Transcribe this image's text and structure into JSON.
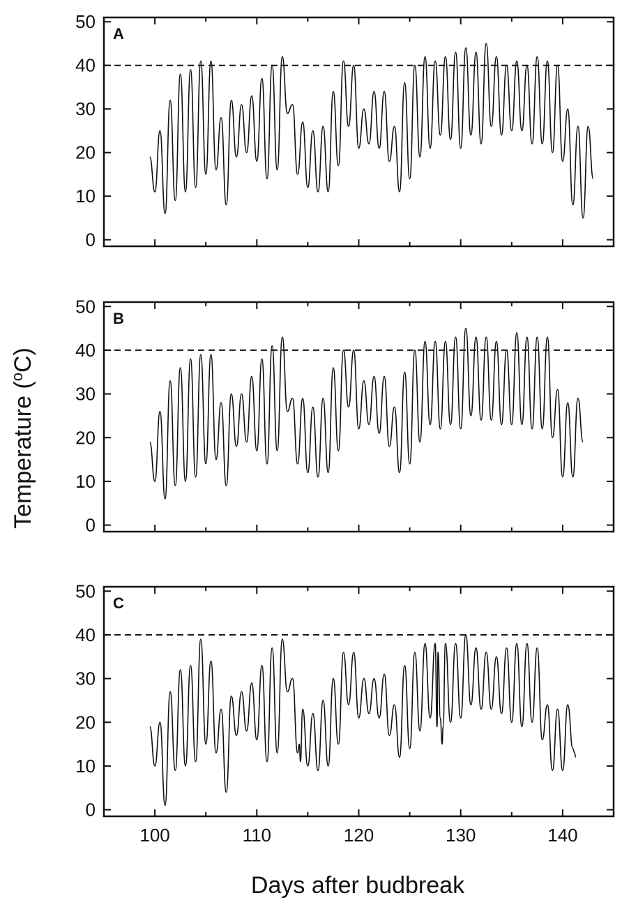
{
  "chart_data": {
    "type": "line",
    "xlabel": "Days after budbreak",
    "ylabel": "Temperature (°C)",
    "ylabel_parts": {
      "text": "Temperature (",
      "superscript": "o",
      "unit": "C)"
    },
    "xlim": [
      95,
      145
    ],
    "ylim": [
      -1.5,
      51
    ],
    "x_ticks": [
      100,
      110,
      120,
      130,
      140
    ],
    "y_ticks": [
      0,
      10,
      20,
      30,
      40,
      50
    ],
    "grid": false,
    "reference_line": {
      "y": 40,
      "style": "dashed"
    },
    "panels": [
      {
        "label": "A",
        "x_start": 99.5,
        "x_step": 0.5,
        "values": [
          19,
          11,
          25,
          6,
          32,
          9,
          38,
          11,
          39,
          12,
          41,
          15,
          41,
          16,
          28,
          8,
          32,
          19,
          31,
          20,
          33,
          18,
          37,
          14,
          40,
          16,
          42,
          29,
          31,
          15,
          27,
          12,
          25,
          11,
          26,
          11,
          34,
          17,
          41,
          26,
          40,
          21,
          30,
          22,
          34,
          21,
          34,
          18,
          26,
          11,
          36,
          14,
          40,
          19,
          42,
          21,
          41,
          24,
          42,
          23,
          43,
          21,
          44,
          24,
          43,
          22,
          45,
          26,
          42,
          24,
          40,
          25,
          41,
          25,
          40,
          22,
          42,
          22,
          41,
          20,
          40,
          18,
          30,
          8,
          26,
          5,
          26,
          14
        ],
        "drops": []
      },
      {
        "label": "B",
        "x_start": 99.5,
        "x_step": 0.5,
        "values": [
          19,
          10,
          26,
          6,
          33,
          9,
          36,
          10,
          38,
          11,
          39,
          14,
          39,
          15,
          28,
          9,
          30,
          18,
          30,
          19,
          34,
          17,
          38,
          14,
          41,
          17,
          43,
          26,
          29,
          14,
          29,
          12,
          27,
          11,
          29,
          12,
          36,
          17,
          40,
          27,
          40,
          22,
          33,
          23,
          34,
          21,
          34,
          18,
          27,
          12,
          35,
          14,
          40,
          19,
          42,
          23,
          42,
          22,
          42,
          23,
          43,
          22,
          45,
          25,
          43,
          24,
          43,
          24,
          42,
          23,
          40,
          23,
          44,
          23,
          43,
          22,
          43,
          22,
          43,
          20,
          31,
          11,
          28,
          11,
          29,
          19
        ],
        "drops": []
      },
      {
        "label": "C",
        "x_start": 99.5,
        "x_step": 0.5,
        "values": [
          19,
          10,
          20,
          1,
          27,
          9,
          32,
          10,
          33,
          11,
          39,
          15,
          34,
          13,
          23,
          4,
          26,
          17,
          27,
          18,
          29,
          16,
          33,
          11,
          37,
          13,
          39,
          27,
          30,
          13,
          23,
          10,
          22,
          9,
          25,
          10,
          30,
          15,
          36,
          24,
          36,
          21,
          30,
          22,
          30,
          21,
          31,
          17,
          24,
          12,
          33,
          14,
          36,
          18,
          38,
          21,
          38,
          21,
          38,
          20,
          38,
          21,
          40,
          24,
          37,
          23,
          36,
          23,
          35,
          22,
          37,
          20,
          38,
          19,
          38,
          20,
          37,
          16,
          24,
          9,
          23,
          9,
          24,
          14
        ],
        "drops": [
          [
            29,
            15
          ],
          [
            56,
            19
          ],
          [
            57,
            15
          ],
          [
            83,
            13
          ]
        ]
      }
    ]
  }
}
